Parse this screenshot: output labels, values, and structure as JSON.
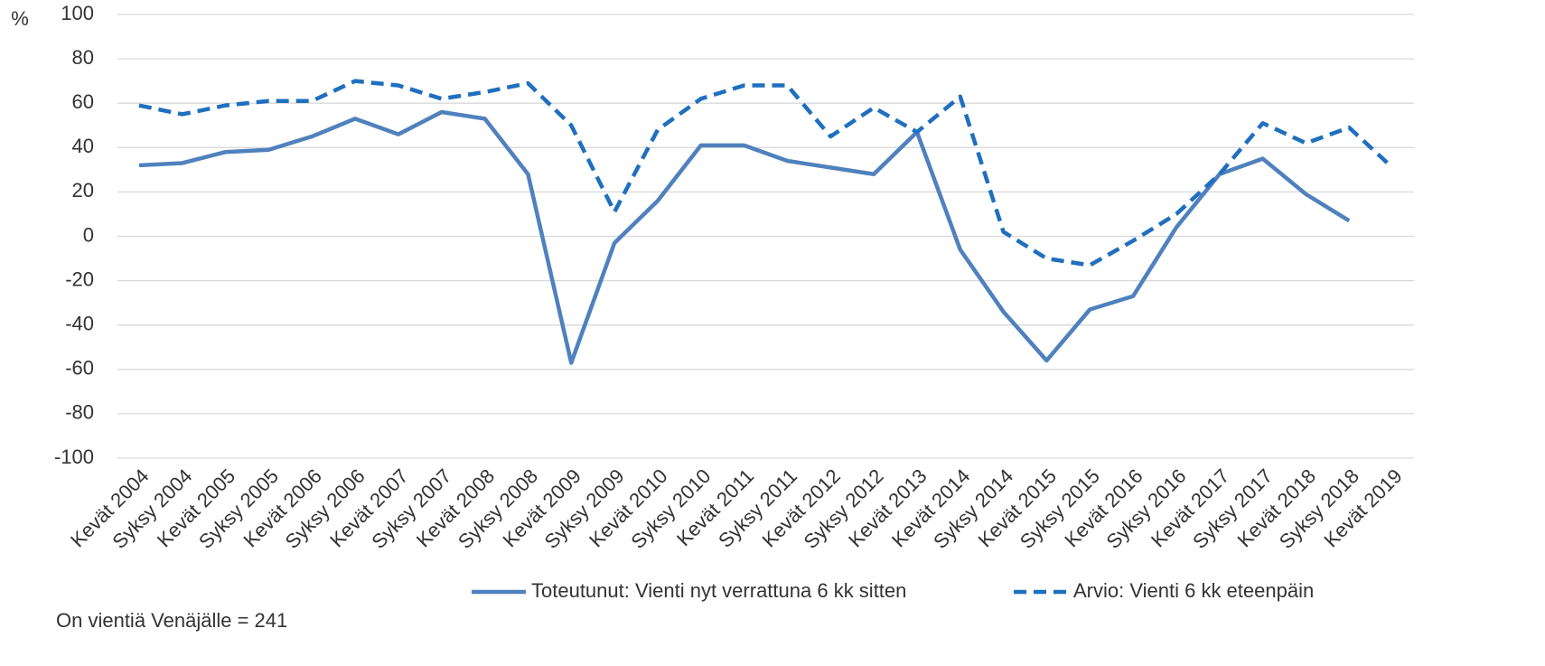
{
  "chart_data": {
    "type": "line",
    "y_label": "%",
    "note": "On vientiä Venäjälle = 241",
    "categories": [
      "Kevät 2004",
      "Syksy 2004",
      "Kevät 2005",
      "Syksy 2005",
      "Kevät 2006",
      "Syksy 2006",
      "Kevät 2007",
      "Syksy 2007",
      "Kevät 2008",
      "Syksy 2008",
      "Kevät 2009",
      "Syksy 2009",
      "Kevät 2010",
      "Syksy 2010",
      "Kevät 2011",
      "Syksy 2011",
      "Kevät 2012",
      "Syksy 2012",
      "Kevät 2013",
      "Kevät 2014",
      "Syksy 2014",
      "Kevät 2015",
      "Syksy 2015",
      "Kevät 2016",
      "Syksy 2016",
      "Kevät 2017",
      "Syksy 2017",
      "Kevät 2018",
      "Syksy 2018",
      "Kevät 2019"
    ],
    "series": [
      {
        "name": "Toteutunut: Vienti nyt verrattuna 6 kk sitten",
        "color": "#4f81bd",
        "dash": false,
        "values": [
          32,
          33,
          38,
          39,
          45,
          53,
          46,
          56,
          53,
          28,
          -57,
          -3,
          16,
          41,
          41,
          34,
          31,
          28,
          47,
          -6,
          -34,
          -56,
          -33,
          -27,
          4,
          28,
          35,
          19,
          7,
          null
        ]
      },
      {
        "name": "Arvio: Vienti 6 kk eteenpäin",
        "color": "#1f6fbf",
        "dash": true,
        "values": [
          59,
          55,
          59,
          61,
          61,
          70,
          68,
          62,
          65,
          69,
          50,
          11,
          48,
          62,
          68,
          68,
          45,
          58,
          47,
          63,
          2,
          -10,
          -13,
          -2,
          10,
          28,
          51,
          42,
          49,
          31
        ]
      }
    ],
    "ylim": [
      -100,
      100
    ],
    "yticks": [
      -100,
      -80,
      -60,
      -40,
      -20,
      0,
      20,
      40,
      60,
      80,
      100
    ],
    "grid": true,
    "legend": "bottom"
  }
}
